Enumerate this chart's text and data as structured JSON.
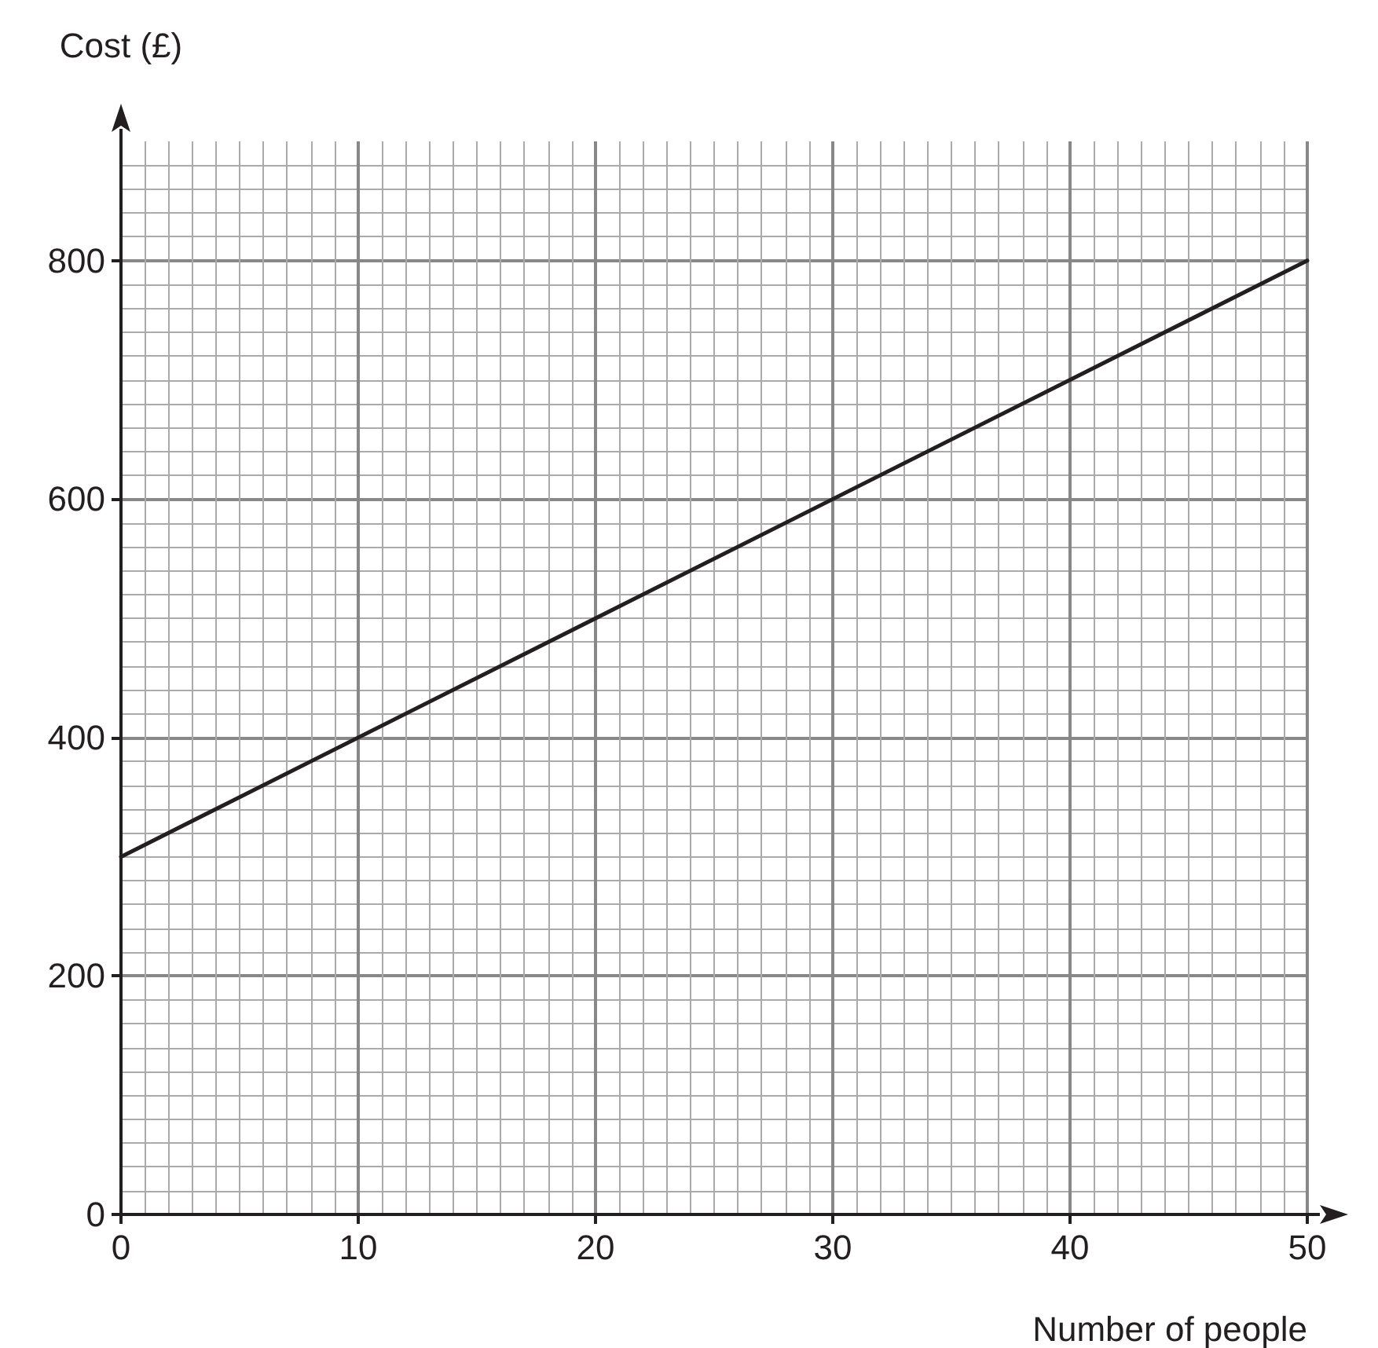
{
  "chart_data": {
    "type": "line",
    "xlabel": "Number of people",
    "ylabel": "Cost (£)",
    "x": [
      0,
      50
    ],
    "series": [
      {
        "color": "#231f20",
        "values": [
          300,
          800
        ]
      }
    ],
    "xlim": [
      0,
      50
    ],
    "xticks": [
      0,
      10,
      20,
      30,
      40,
      50
    ],
    "ylim": [
      0,
      900
    ],
    "yticks": [
      0,
      200,
      400,
      600,
      800
    ],
    "grid": true,
    "marker": "none",
    "line_style": "solid"
  }
}
